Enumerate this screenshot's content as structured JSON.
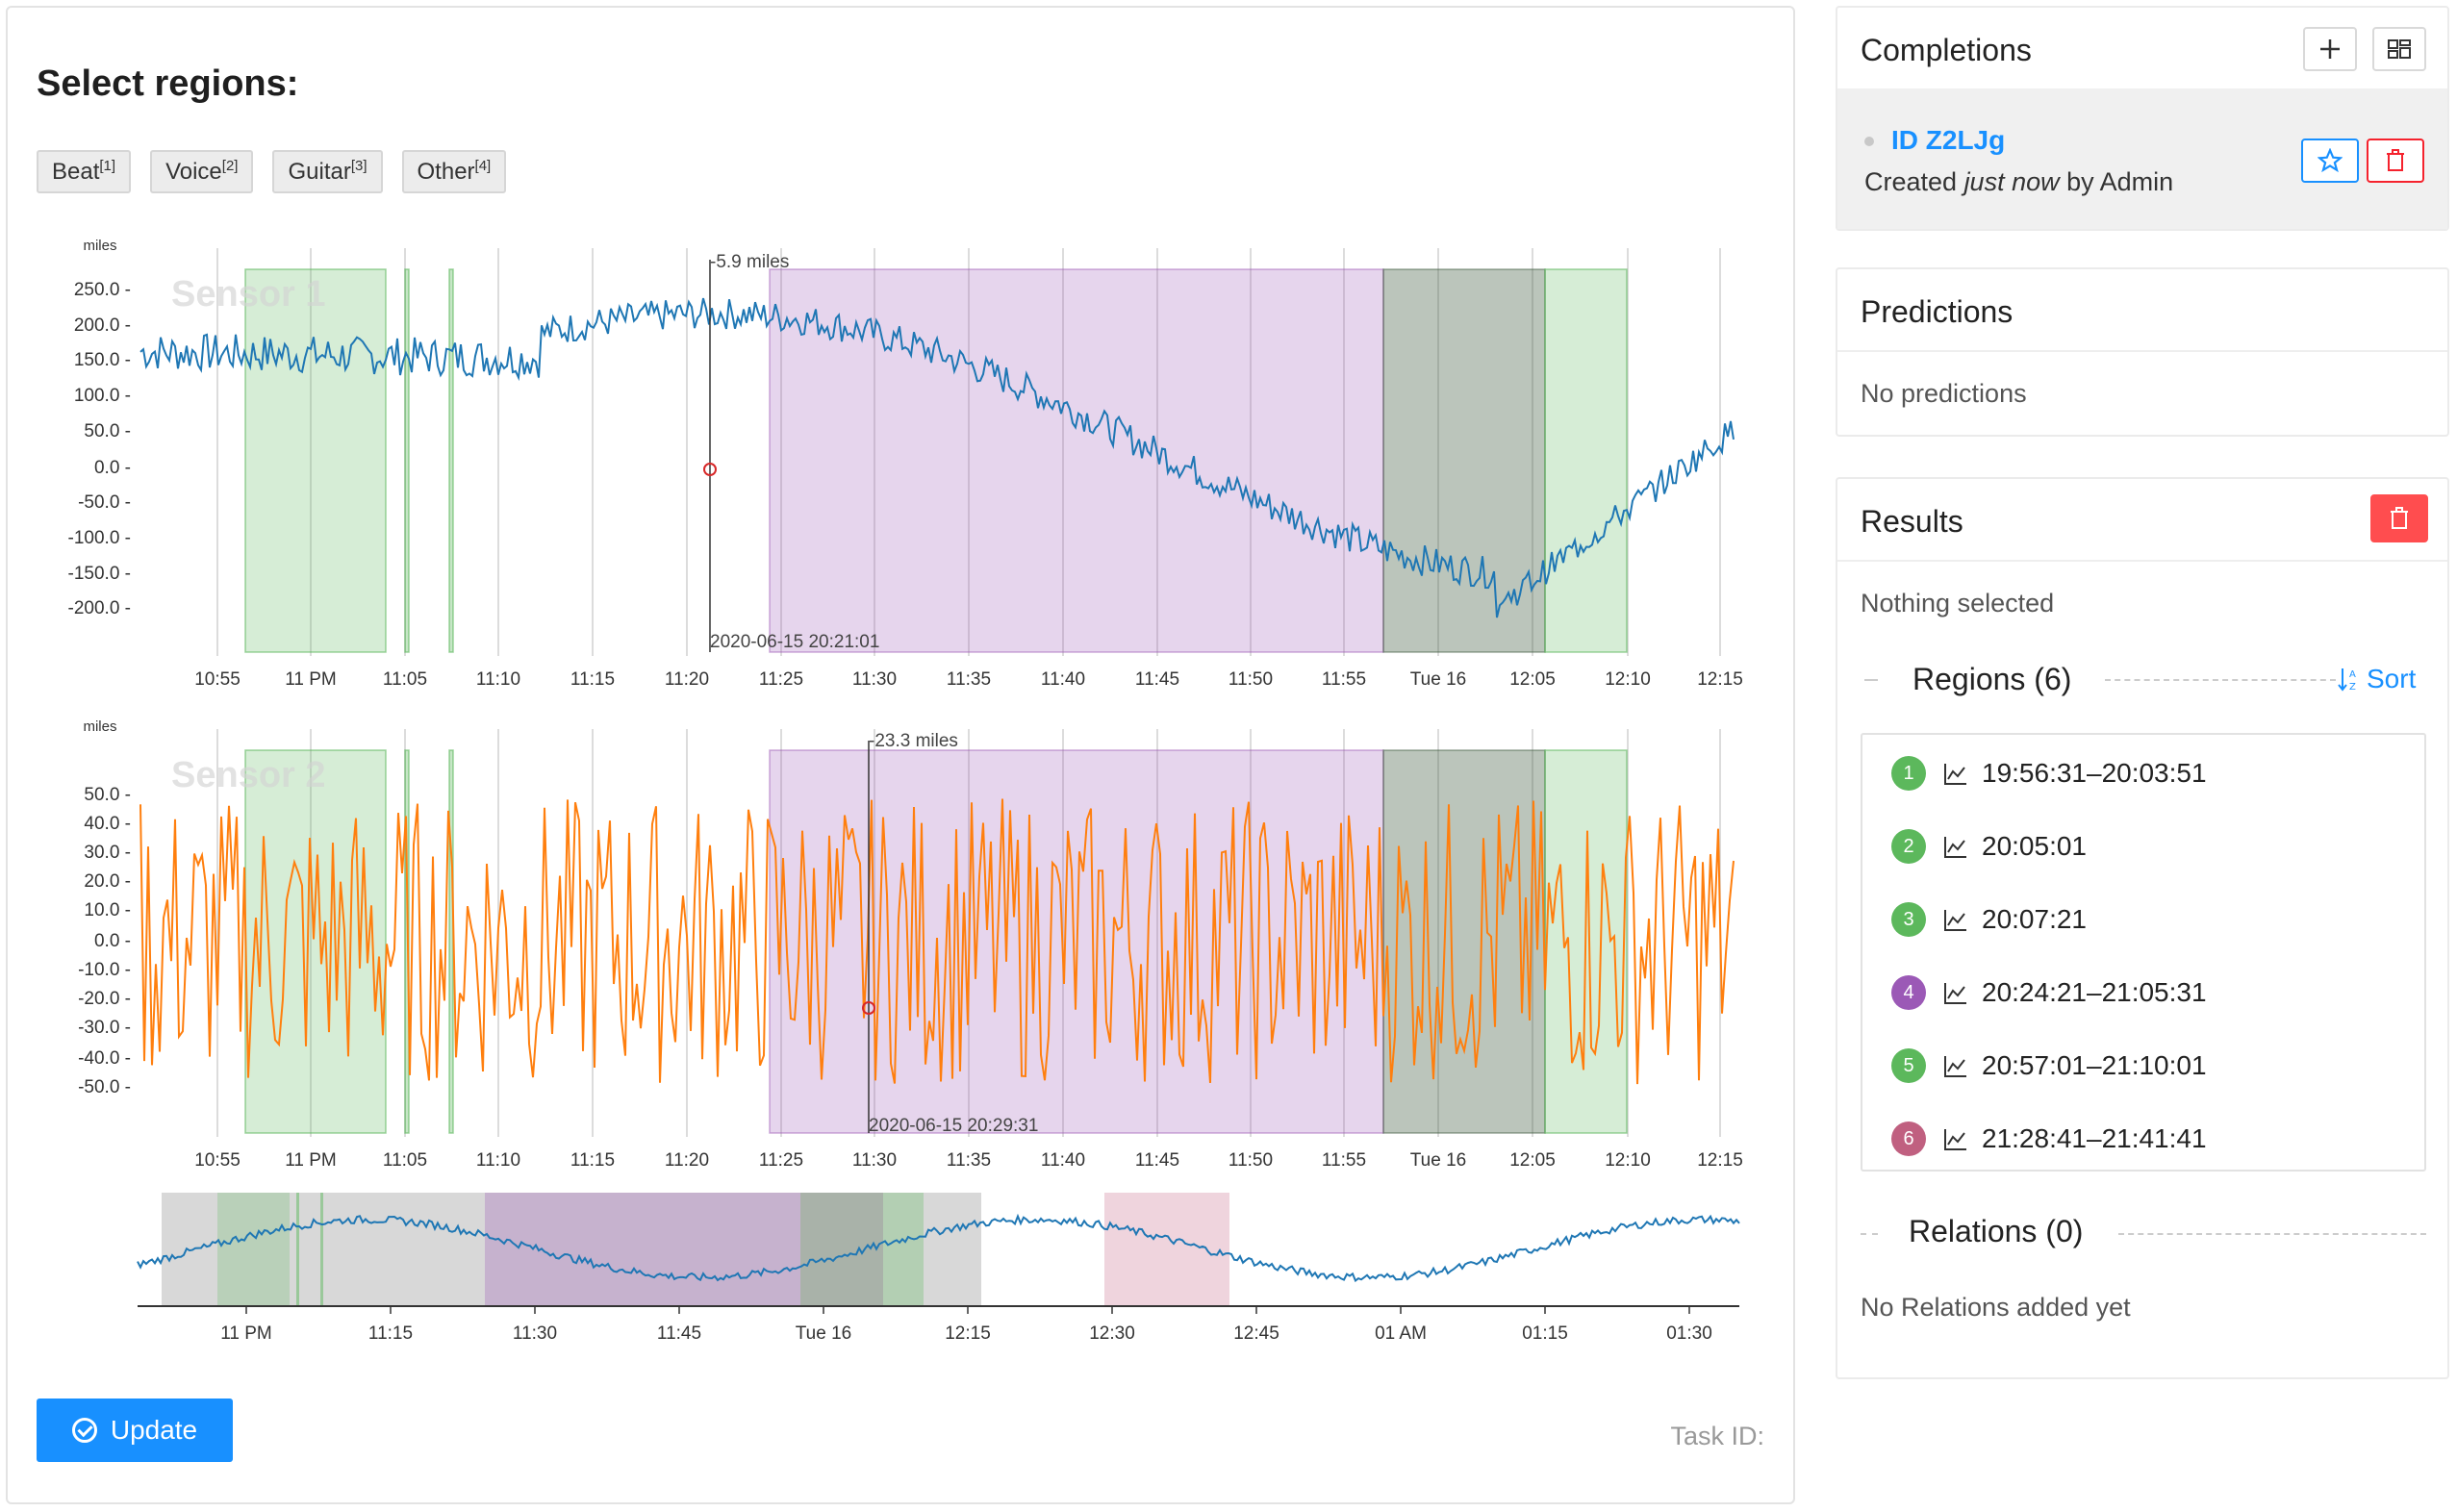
{
  "main": {
    "title": "Select regions:",
    "labels": [
      {
        "name": "Beat",
        "hotkey": "[1]"
      },
      {
        "name": "Voice",
        "hotkey": "[2]"
      },
      {
        "name": "Guitar",
        "hotkey": "[3]"
      },
      {
        "name": "Other",
        "hotkey": "[4]"
      }
    ],
    "update_label": "Update",
    "task_id_label": "Task ID:"
  },
  "completions": {
    "title": "Completions",
    "item": {
      "id": "ID Z2LJg",
      "created_prefix": "Created ",
      "created_when": "just now",
      "created_suffix": " by Admin"
    }
  },
  "predictions": {
    "title": "Predictions",
    "empty_text": "No predictions"
  },
  "results": {
    "title": "Results",
    "nothing_selected": "Nothing selected",
    "regions_header": "Regions (6)",
    "sort_label": "Sort",
    "regions": [
      {
        "num": "1",
        "range": "19:56:31–20:03:51",
        "color": "#5cb85c"
      },
      {
        "num": "2",
        "range": "20:05:01",
        "color": "#5cb85c"
      },
      {
        "num": "3",
        "range": "20:07:21",
        "color": "#5cb85c"
      },
      {
        "num": "4",
        "range": "20:24:21–21:05:31",
        "color": "#9b59b6"
      },
      {
        "num": "5",
        "range": "20:57:01–21:10:01",
        "color": "#5cb85c"
      },
      {
        "num": "6",
        "range": "21:28:41–21:41:41",
        "color": "#c06080"
      }
    ],
    "relations_header": "Relations (0)",
    "relations_empty": "No Relations added yet"
  },
  "chart_data": [
    {
      "type": "line",
      "name": "Sensor 1",
      "ylabel": "miles",
      "yticks": [
        "250.0",
        "200.0",
        "150.0",
        "100.0",
        "50.0",
        "0.0",
        "-50.0",
        "-100.0",
        "-150.0",
        "-200.0"
      ],
      "xticks": [
        "10:55",
        "11 PM",
        "11:05",
        "11:10",
        "11:15",
        "11:20",
        "11:25",
        "11:30",
        "11:35",
        "11:40",
        "11:45",
        "11:50",
        "11:55",
        "Tue 16",
        "12:05",
        "12:10",
        "12:15"
      ],
      "cursor_value": "-5.9 miles",
      "cursor_time": "2020-06-15 20:21:01",
      "color": "#1f77b4"
    },
    {
      "type": "line",
      "name": "Sensor 2",
      "ylabel": "miles",
      "yticks": [
        "50.0",
        "40.0",
        "30.0",
        "20.0",
        "10.0",
        "0.0",
        "-10.0",
        "-20.0",
        "-30.0",
        "-40.0",
        "-50.0"
      ],
      "xticks": [
        "10:55",
        "11 PM",
        "11:05",
        "11:10",
        "11:15",
        "11:20",
        "11:25",
        "11:30",
        "11:35",
        "11:40",
        "11:45",
        "11:50",
        "11:55",
        "Tue 16",
        "12:05",
        "12:10",
        "12:15"
      ],
      "cursor_value": "-23.3 miles",
      "cursor_time": "2020-06-15 20:29:31",
      "color": "#ff7f0e"
    },
    {
      "type": "line",
      "name": "overview",
      "xticks": [
        "11 PM",
        "11:15",
        "11:30",
        "11:45",
        "Tue 16",
        "12:15",
        "12:30",
        "12:45",
        "01 AM",
        "01:15",
        "01:30"
      ],
      "color": "#1f77b4"
    }
  ]
}
